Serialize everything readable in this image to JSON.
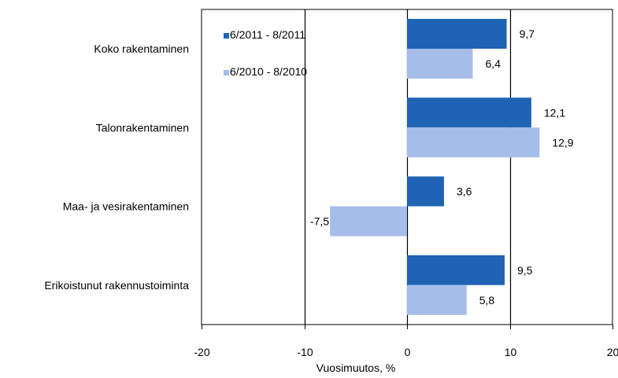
{
  "chart_data": {
    "type": "bar",
    "orientation": "horizontal",
    "title": "",
    "xlabel": "Vuosimuutos, %",
    "ylabel": "",
    "xlim": [
      -20,
      20
    ],
    "xticks": [
      -20,
      -10,
      0,
      10,
      20
    ],
    "xtick_labels": [
      "-20",
      "-10",
      "0",
      "10",
      "20"
    ],
    "grid": "vertical major gridlines",
    "legend_position": "top-left inside plot",
    "categories": [
      "Koko rakentaminen",
      "Talonrakentaminen",
      "Maa- ja vesirakentaminen",
      "Erikoistunut rakennustoiminta"
    ],
    "series": [
      {
        "name": "6/2011 - 8/2011",
        "color": "#1f64b4",
        "values": [
          9.7,
          12.1,
          3.6,
          9.5
        ],
        "labels": [
          "9,7",
          "12,1",
          "3,6",
          "9,5"
        ]
      },
      {
        "name": "6/2010 - 8/2010",
        "color": "#a6bde9",
        "values": [
          6.4,
          12.9,
          -7.5,
          5.8
        ],
        "labels": [
          "6,4",
          "12,9",
          "-7,5",
          "5,8"
        ]
      }
    ]
  }
}
